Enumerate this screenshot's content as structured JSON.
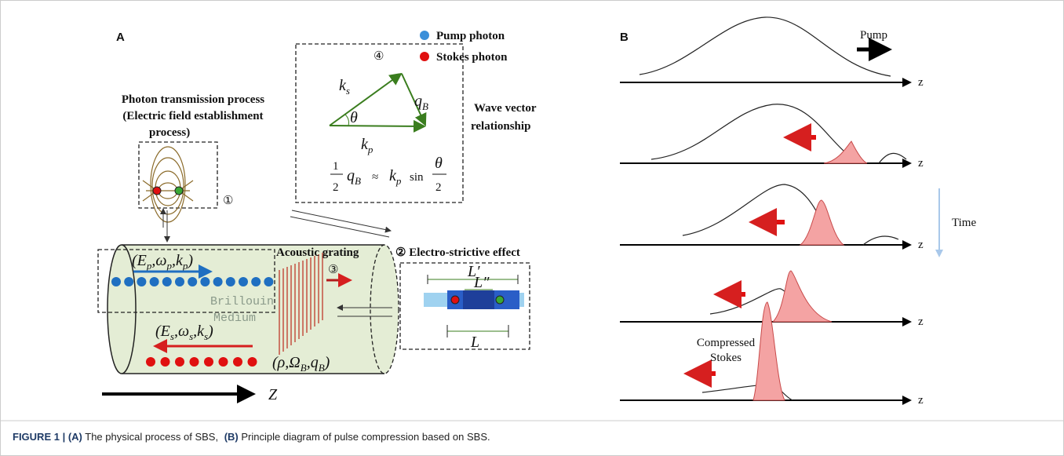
{
  "panel_a": {
    "label": "A",
    "legend": [
      "Pump photon",
      "Stokes photon"
    ],
    "wave_vector": {
      "number": "④",
      "ks": [
        "k",
        "s"
      ],
      "qb": [
        "q",
        "B"
      ],
      "theta": "θ",
      "kp": [
        "k",
        "p"
      ],
      "formula": {
        "half_num": "1",
        "half_den": "2",
        "lhs": [
          "q",
          "B"
        ],
        "approx": "≈",
        "rhs": [
          "k",
          "p"
        ],
        "sin": "sin",
        "angle_num": "θ",
        "angle_den": "2"
      },
      "caption": [
        "Wave vector",
        "relationship"
      ]
    },
    "photon_transmission": {
      "title": [
        "Photon transmission process",
        "(Electric field establishment",
        "process)"
      ],
      "number": "①"
    },
    "pump_tuple": [
      "(E",
      "p",
      ",ω",
      "p",
      ",k",
      "p",
      ")"
    ],
    "medium": [
      "Brillouin",
      "Medium"
    ],
    "stokes_tuple": [
      "(E",
      "s",
      ",ω",
      "s",
      ",k",
      "s",
      ")"
    ],
    "acoustic": {
      "title": "Acoustic grating",
      "number": "③",
      "tuple": [
        "(ρ,Ω",
        "B",
        ",q",
        "B",
        ")"
      ]
    },
    "electrostriction": {
      "title": "② Electro-strictive effect",
      "lengths": [
        "L′",
        "L″",
        "L"
      ]
    },
    "axis": "Z"
  },
  "panel_b": {
    "label": "B",
    "pump": "Pump",
    "time": "Time",
    "stokes": [
      "Compressed",
      "Stokes"
    ],
    "axis_labels": [
      "z",
      "z",
      "z",
      "z",
      "z"
    ]
  },
  "caption": {
    "label": "FIGURE 1 |",
    "a": "(A)",
    "a_text": "The physical process of SBS,",
    "b": "(B)",
    "b_text": "Principle diagram of pulse compression based on SBS."
  }
}
